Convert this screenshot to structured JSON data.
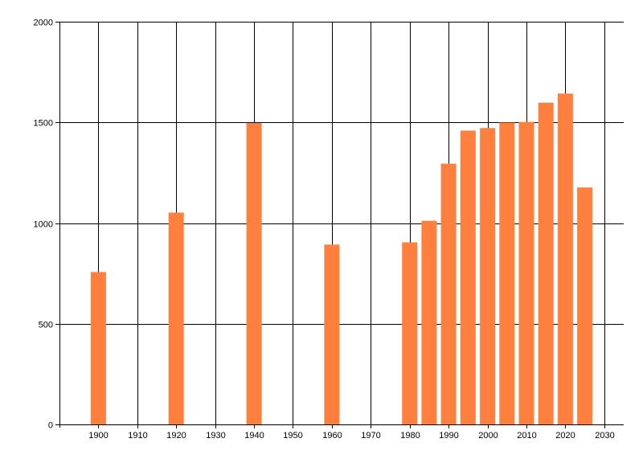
{
  "chart_data": {
    "type": "bar",
    "title": "",
    "xlabel": "",
    "ylabel": "",
    "x": [
      1900,
      1920,
      1940,
      1960,
      1980,
      1985,
      1990,
      1995,
      2000,
      2005,
      2010,
      2015,
      2020,
      2025
    ],
    "values": [
      757,
      1052,
      1497,
      893,
      904,
      1011,
      1295,
      1459,
      1472,
      1499,
      1502,
      1598,
      1643,
      1177
    ],
    "xlim": [
      1890,
      2035
    ],
    "ylim": [
      0,
      2000
    ],
    "xticks": [
      1900,
      1910,
      1920,
      1930,
      1940,
      1950,
      1960,
      1970,
      1980,
      1990,
      2000,
      2010,
      2020,
      2030
    ],
    "yticks": [
      0,
      500,
      1000,
      1500,
      2000
    ],
    "grid": true,
    "bar_color": "#ff7f3f",
    "grid_color": "#000000"
  }
}
